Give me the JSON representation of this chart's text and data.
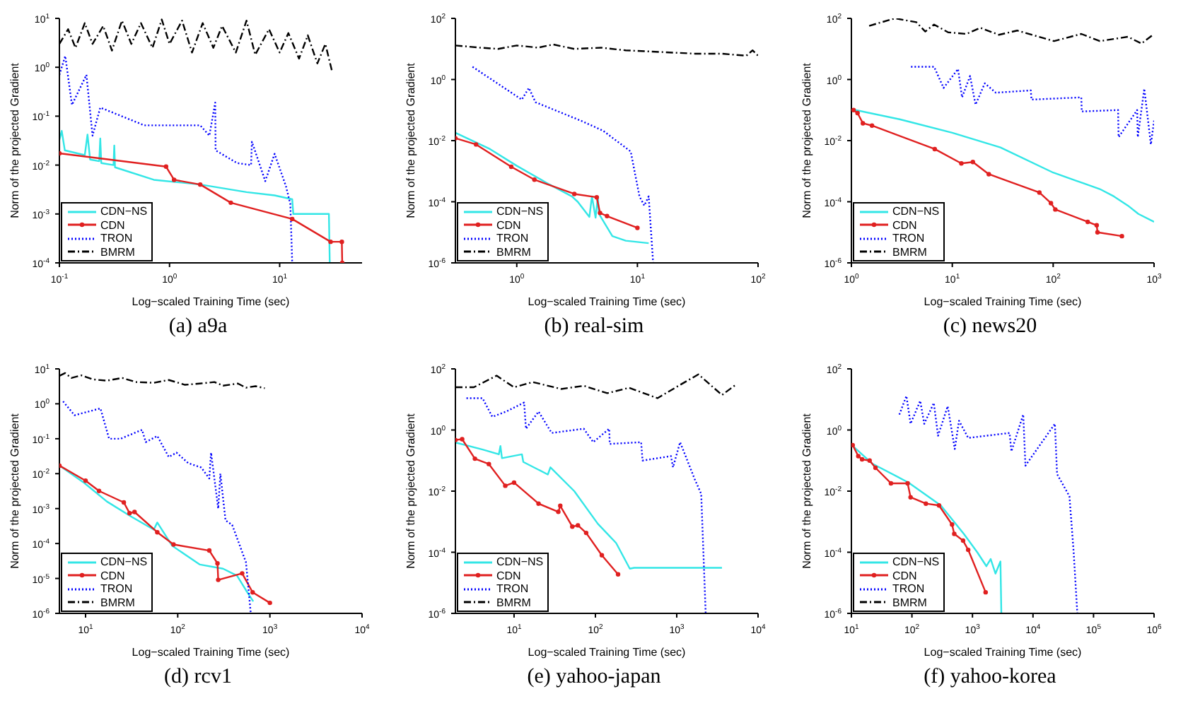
{
  "chart_data": [
    {
      "type": "line",
      "title": "(a) a9a",
      "xlabel": "Log−scaled Training Time (sec)",
      "ylabel": "Norm of the projected Gradient",
      "log": "xy",
      "legend": "bottom left",
      "xlim": [
        0.1,
        56
      ],
      "ylim": [
        0.0001,
        10
      ],
      "xticks": [
        {
          "value": 0.1,
          "label": "10$^{-1}$"
        },
        {
          "value": 1,
          "label": "10$^{0}$"
        },
        {
          "value": 10,
          "label": "10$^{1}$"
        }
      ],
      "yticks": [
        {
          "value": 0.0001,
          "label": "10$^{-4}$"
        },
        {
          "value": 0.001,
          "label": "10$^{-3}$"
        },
        {
          "value": 0.01,
          "label": "10$^{-2}$"
        },
        {
          "value": 0.1,
          "label": "10$^{-1}$"
        },
        {
          "value": 1,
          "label": "10$^{0}$"
        },
        {
          "value": 10,
          "label": "10$^{1}$"
        }
      ],
      "series": [
        {
          "name": "CDN−NS",
          "color": "#33e6e6",
          "line_style": "solid",
          "x": [
            0.1,
            0.105,
            0.112,
            0.17,
            0.18,
            0.19,
            0.23,
            0.235,
            0.24,
            0.31,
            0.315,
            0.32,
            0.72,
            1.9,
            5,
            9,
            13,
            13.3,
            28,
            28.5
          ],
          "values": [
            0.033,
            0.05,
            0.02,
            0.016,
            0.042,
            0.013,
            0.012,
            0.035,
            0.011,
            0.01,
            0.025,
            0.009,
            0.005,
            0.004,
            0.0028,
            0.0024,
            0.002,
            0.001,
            0.001,
            0.0001
          ]
        },
        {
          "name": "CDN",
          "color": "#e02020",
          "line_style": "solid",
          "marker": "circle",
          "x": [
            0.1,
            0.93,
            1.1,
            1.9,
            3.6,
            13,
            29,
            36.7,
            37
          ],
          "values": [
            0.0174,
            0.0093,
            0.005,
            0.004,
            0.0017,
            0.00079,
            0.00027,
            0.00027,
            0.0001
          ]
        },
        {
          "name": "TRON",
          "color": "#0000ff",
          "line_style": "dotted",
          "x": [
            0.1,
            0.113,
            0.13,
            0.176,
            0.2,
            0.235,
            0.59,
            1.9,
            2.3,
            2.6,
            2.62,
            4.1,
            5.5,
            5.6,
            7.4,
            9,
            11.4,
            12.5,
            13
          ],
          "values": [
            0.7,
            1.7,
            0.17,
            0.7,
            0.04,
            0.15,
            0.065,
            0.065,
            0.04,
            0.19,
            0.02,
            0.011,
            0.01,
            0.03,
            0.0047,
            0.017,
            0.0037,
            0.0016,
            0.0001
          ]
        },
        {
          "name": "BMRM",
          "color": "#000000",
          "line_style": "dashed",
          "x": [
            0.1,
            0.12,
            0.14,
            0.17,
            0.2,
            0.25,
            0.3,
            0.37,
            0.45,
            0.55,
            0.7,
            0.85,
            1,
            1.3,
            1.6,
            2,
            2.5,
            3,
            4,
            5,
            6,
            8,
            10,
            12,
            15,
            18,
            22,
            26,
            30
          ],
          "values": [
            3,
            6,
            2.5,
            8,
            3,
            7,
            2.2,
            9,
            3,
            8,
            2.5,
            9.5,
            3,
            9,
            2,
            8,
            2.5,
            7,
            2,
            9,
            1.8,
            6,
            2,
            5,
            1.5,
            4.5,
            1.2,
            3,
            0.8
          ]
        }
      ]
    },
    {
      "type": "line",
      "title": "(b) real-sim",
      "xlabel": "Log−scaled Training Time (sec)",
      "ylabel": "Norm of the projected Gradient",
      "log": "xy",
      "legend": "bottom left",
      "xlim": [
        0.31,
        100
      ],
      "ylim": [
        1e-06,
        100
      ],
      "xticks": [
        {
          "value": 1,
          "label": "10$^{0}$"
        },
        {
          "value": 10,
          "label": "10$^{1}$"
        },
        {
          "value": 100,
          "label": "10$^{2}$"
        }
      ],
      "yticks": [
        {
          "value": 1e-06,
          "label": "10$^{-6}$"
        },
        {
          "value": 0.0001,
          "label": "10$^{-4}$"
        },
        {
          "value": 0.01,
          "label": "10$^{-2}$"
        },
        {
          "value": 1,
          "label": "10$^{0}$"
        },
        {
          "value": 100,
          "label": "10$^{2}$"
        }
      ],
      "series": [
        {
          "name": "CDN−NS",
          "color": "#33e6e6",
          "line_style": "solid",
          "x": [
            0.31,
            0.6,
            1,
            1.86,
            2.86,
            3.2,
            4,
            4.2,
            4.5,
            4.7,
            4.8,
            6.2,
            8,
            12.4
          ],
          "values": [
            0.018,
            0.0053,
            0.0015,
            0.00037,
            0.00015,
            0.0001,
            3.2e-05,
            0.00015,
            3e-05,
            0.00015,
            4e-05,
            7.5e-06,
            5.3e-06,
            4.4e-06
          ]
        },
        {
          "name": "CDN",
          "color": "#e02020",
          "line_style": "solid",
          "marker": "circle",
          "x": [
            0.31,
            0.46,
            0.9,
            1.4,
            3,
            4.6,
            4.9,
            5.6,
            10
          ],
          "values": [
            0.012,
            0.0075,
            0.0014,
            0.00053,
            0.00018,
            0.00014,
            4.3e-05,
            3.4e-05,
            1.4e-05
          ]
        },
        {
          "name": "TRON",
          "color": "#0000ff",
          "line_style": "dotted",
          "x": [
            0.43,
            1.1,
            1.26,
            1.43,
            3.4,
            5.2,
            8.8,
            10.4,
            11.4,
            12.4,
            13.5
          ],
          "values": [
            2.6,
            0.22,
            0.53,
            0.18,
            0.045,
            0.021,
            0.0044,
            0.00015,
            7.5e-05,
            0.00015,
            1e-06
          ]
        },
        {
          "name": "BMRM",
          "color": "#000000",
          "line_style": "dashed",
          "x": [
            0.31,
            0.5,
            0.7,
            1,
            1.5,
            2,
            3,
            5,
            8,
            15,
            30,
            50,
            80,
            90,
            100
          ],
          "values": [
            13,
            11,
            10,
            13,
            11,
            14,
            10,
            11,
            9,
            8,
            7,
            7,
            6,
            9,
            6
          ]
        }
      ]
    },
    {
      "type": "line",
      "title": "(c) news20",
      "xlabel": "Log−scaled Training Time (sec)",
      "ylabel": "Norm of the projected Gradient",
      "log": "xy",
      "legend": "bottom left",
      "xlim": [
        1,
        1000
      ],
      "ylim": [
        1e-06,
        100
      ],
      "xticks": [
        {
          "value": 1,
          "label": "10$^{0}$"
        },
        {
          "value": 10,
          "label": "10$^{1}$"
        },
        {
          "value": 100,
          "label": "10$^{2}$"
        },
        {
          "value": 1000,
          "label": "10$^{3}$"
        }
      ],
      "yticks": [
        {
          "value": 1e-06,
          "label": "10$^{-6}$"
        },
        {
          "value": 0.0001,
          "label": "10$^{-4}$"
        },
        {
          "value": 0.01,
          "label": "10$^{-2}$"
        },
        {
          "value": 1,
          "label": "10$^{0}$"
        },
        {
          "value": 100,
          "label": "10$^{2}$"
        }
      ],
      "series": [
        {
          "name": "CDN−NS",
          "color": "#33e6e6",
          "line_style": "solid",
          "x": [
            1,
            3,
            10,
            30,
            100,
            200,
            290,
            400,
            550,
            700,
            1000
          ],
          "values": [
            0.107,
            0.05,
            0.018,
            0.006,
            0.0009,
            0.0004,
            0.00026,
            0.00015,
            7.5e-05,
            4e-05,
            2.2e-05
          ]
        },
        {
          "name": "CDN",
          "color": "#e02020",
          "line_style": "solid",
          "marker": "circle",
          "x": [
            1.05,
            1.15,
            1.3,
            1.6,
            6.7,
            12.3,
            16,
            23,
            73,
            95,
            105,
            220,
            270,
            275,
            480
          ],
          "values": [
            0.1,
            0.08,
            0.037,
            0.031,
            0.0053,
            0.0018,
            0.002,
            0.0008,
            0.0002,
            9e-05,
            5.6e-05,
            2.2e-05,
            1.7e-05,
            1e-05,
            7.5e-06
          ]
        },
        {
          "name": "TRON",
          "color": "#0000ff",
          "line_style": "dotted",
          "x": [
            3.9,
            6.6,
            8.2,
            11.4,
            12.5,
            15,
            17,
            21,
            27,
            60,
            61,
            190,
            192,
            440,
            445,
            680,
            690,
            800,
            930,
            1000
          ],
          "values": [
            2.6,
            2.6,
            0.53,
            2.2,
            0.26,
            1.3,
            0.15,
            0.75,
            0.37,
            0.44,
            0.22,
            0.26,
            0.09,
            0.1,
            0.013,
            0.1,
            0.013,
            0.5,
            0.0075,
            0.045
          ]
        },
        {
          "name": "BMRM",
          "color": "#000000",
          "line_style": "dashed",
          "x": [
            1.5,
            2.7,
            4.4,
            5.4,
            6.6,
            9.1,
            13.8,
            19,
            29,
            44,
            102,
            190,
            290,
            550,
            750,
            1000
          ],
          "values": [
            57,
            100,
            75,
            37,
            63,
            35,
            31,
            49,
            29,
            40,
            18,
            31,
            18,
            25,
            15,
            31
          ]
        }
      ]
    },
    {
      "type": "line",
      "title": "(d) rcv1",
      "xlabel": "Log−scaled Training Time (sec)",
      "ylabel": "Norm of the projected Gradient",
      "log": "xy",
      "legend": "bottom left",
      "xlim": [
        5.2,
        10000
      ],
      "ylim": [
        1e-06,
        10
      ],
      "xticks": [
        {
          "value": 10,
          "label": "10$^{1}$"
        },
        {
          "value": 100,
          "label": "10$^{2}$"
        },
        {
          "value": 1000,
          "label": "10$^{3}$"
        },
        {
          "value": 10000,
          "label": "10$^{4}$"
        }
      ],
      "yticks": [
        {
          "value": 1e-06,
          "label": "10$^{-6}$"
        },
        {
          "value": 1e-05,
          "label": "10$^{-5}$"
        },
        {
          "value": 0.0001,
          "label": "10$^{-4}$"
        },
        {
          "value": 0.001,
          "label": "10$^{-3}$"
        },
        {
          "value": 0.01,
          "label": "10$^{-2}$"
        },
        {
          "value": 0.1,
          "label": "10$^{-1}$"
        },
        {
          "value": 1,
          "label": "10$^{0}$"
        },
        {
          "value": 10,
          "label": "10$^{1}$"
        }
      ],
      "series": [
        {
          "name": "CDN−NS",
          "color": "#33e6e6",
          "line_style": "solid",
          "x": [
            5.2,
            9.7,
            17,
            31,
            55,
            60,
            87,
            174,
            310,
            440,
            550,
            660
          ],
          "values": [
            0.017,
            0.0054,
            0.0016,
            0.0006,
            0.00025,
            0.0004,
            8.6e-05,
            2.5e-05,
            1.9e-05,
            1.2e-05,
            4.6e-06,
            2.2e-06
          ]
        },
        {
          "name": "CDN",
          "color": "#e02020",
          "line_style": "solid",
          "marker": "circle",
          "x": [
            5.2,
            10,
            14,
            26,
            30,
            34,
            60,
            90,
            220,
            270,
            275,
            500,
            650,
            1000
          ],
          "values": [
            0.017,
            0.0063,
            0.0032,
            0.0015,
            0.00074,
            0.0008,
            0.00021,
            9.4e-05,
            6.3e-05,
            2.7e-05,
            9.1e-06,
            1.4e-05,
            4e-06,
            2e-06
          ]
        },
        {
          "name": "TRON",
          "color": "#0000ff",
          "line_style": "dotted",
          "x": [
            5.7,
            7.6,
            14.5,
            18,
            24,
            41,
            45,
            60,
            80,
            97,
            130,
            180,
            220,
            230,
            275,
            290,
            330,
            390,
            550,
            620
          ],
          "values": [
            1.17,
            0.47,
            0.74,
            0.1,
            0.1,
            0.18,
            0.08,
            0.12,
            0.03,
            0.04,
            0.02,
            0.015,
            0.0073,
            0.04,
            0.001,
            0.01,
            0.00046,
            0.00034,
            2.9e-05,
            1e-06
          ]
        },
        {
          "name": "BMRM",
          "color": "#000000",
          "line_style": "dashed",
          "x": [
            5.2,
            6,
            7,
            9,
            12,
            17,
            25,
            35,
            55,
            80,
            120,
            174,
            250,
            310,
            450,
            550,
            700,
            880
          ],
          "values": [
            6.3,
            7.6,
            5.5,
            6.5,
            5,
            4.6,
            5.5,
            4.2,
            4,
            4.8,
            3.5,
            3.8,
            4.2,
            3.3,
            3.8,
            2.9,
            3.2,
            2.8
          ]
        }
      ]
    },
    {
      "type": "line",
      "title": "(e) yahoo-japan",
      "xlabel": "Log−scaled Training Time (sec)",
      "ylabel": "Norm of the projected Gradient",
      "log": "xy",
      "legend": "bottom left",
      "xlim": [
        1.9,
        10000
      ],
      "ylim": [
        1e-06,
        100
      ],
      "xticks": [
        {
          "value": 10,
          "label": "10$^{1}$"
        },
        {
          "value": 100,
          "label": "10$^{2}$"
        },
        {
          "value": 1000,
          "label": "10$^{3}$"
        },
        {
          "value": 10000,
          "label": "10$^{4}$"
        }
      ],
      "yticks": [
        {
          "value": 1e-06,
          "label": "10$^{-6}$"
        },
        {
          "value": 0.0001,
          "label": "10$^{-4}$"
        },
        {
          "value": 0.01,
          "label": "10$^{-2}$"
        },
        {
          "value": 1,
          "label": "10$^{0}$"
        },
        {
          "value": 100,
          "label": "10$^{2}$"
        }
      ],
      "series": [
        {
          "name": "CDN−NS",
          "color": "#33e6e6",
          "line_style": "solid",
          "x": [
            1.9,
            4.1,
            6.5,
            6.8,
            7.1,
            12.5,
            13,
            26,
            28,
            55,
            107,
            180,
            265,
            300,
            3600
          ],
          "values": [
            0.39,
            0.23,
            0.16,
            0.3,
            0.12,
            0.16,
            0.09,
            0.035,
            0.06,
            0.01,
            0.00086,
            0.0002,
            2.9e-05,
            3.1e-05,
            3.1e-05
          ]
        },
        {
          "name": "CDN",
          "color": "#e02020",
          "line_style": "solid",
          "marker": "circle",
          "x": [
            1.9,
            2.3,
            3.3,
            4.9,
            7.8,
            10,
            20,
            35,
            37,
            52,
            61,
            77,
            120,
            190
          ],
          "values": [
            0.47,
            0.5,
            0.115,
            0.077,
            0.015,
            0.019,
            0.0039,
            0.0021,
            0.0033,
            0.00069,
            0.00076,
            0.00043,
            8e-05,
            1.9e-05
          ]
        },
        {
          "name": "TRON",
          "color": "#0000ff",
          "line_style": "dotted",
          "x": [
            2.6,
            4.1,
            5.4,
            8,
            13.3,
            14,
            20,
            29,
            72,
            94,
            148,
            150,
            365,
            380,
            850,
            900,
            1100,
            1660,
            2000,
            2270
          ],
          "values": [
            11,
            11,
            2.7,
            4,
            7.9,
            1.1,
            4,
            0.8,
            1.1,
            0.4,
            1.1,
            0.35,
            0.4,
            0.1,
            0.14,
            0.06,
            0.4,
            0.025,
            0.0081,
            1e-06
          ]
        },
        {
          "name": "BMRM",
          "color": "#000000",
          "line_style": "dashed",
          "x": [
            1.9,
            3.2,
            6.1,
            10,
            17,
            38,
            72,
            140,
            260,
            580,
            1100,
            1850,
            3600,
            5300
          ],
          "values": [
            25,
            25,
            60,
            25,
            37,
            22,
            28,
            16,
            24,
            11,
            30,
            66,
            14,
            30
          ]
        }
      ]
    },
    {
      "type": "line",
      "title": "(f) yahoo-korea",
      "xlabel": "Log−scaled Training Time (sec)",
      "ylabel": "Norm of the projected Gradient",
      "log": "xy",
      "legend": "bottom left",
      "xlim": [
        10,
        1000000
      ],
      "ylim": [
        1e-06,
        100
      ],
      "xticks": [
        {
          "value": 10,
          "label": "10$^{1}$"
        },
        {
          "value": 100,
          "label": "10$^{2}$"
        },
        {
          "value": 1000,
          "label": "10$^{3}$"
        },
        {
          "value": 10000,
          "label": "10$^{4}$"
        },
        {
          "value": 100000,
          "label": "10$^{5}$"
        },
        {
          "value": 1000000,
          "label": "10$^{6}$"
        }
      ],
      "yticks": [
        {
          "value": 1e-06,
          "label": "10$^{-6}$"
        },
        {
          "value": 0.0001,
          "label": "10$^{-4}$"
        },
        {
          "value": 0.01,
          "label": "10$^{-2}$"
        },
        {
          "value": 1,
          "label": "10$^{0}$"
        },
        {
          "value": 100,
          "label": "10$^{2}$"
        }
      ],
      "series": [
        {
          "name": "CDN−NS",
          "color": "#33e6e6",
          "line_style": "solid",
          "x": [
            10,
            22,
            88,
            300,
            720,
            1200,
            1700,
            2000,
            2400,
            2900,
            3000
          ],
          "values": [
            0.33,
            0.08,
            0.019,
            0.0034,
            0.0004,
            0.0001,
            3.5e-05,
            6e-05,
            2e-05,
            5e-05,
            1e-06
          ]
        },
        {
          "name": "CDN",
          "color": "#e02020",
          "line_style": "solid",
          "marker": "circle",
          "x": [
            10.5,
            13,
            15,
            20,
            25,
            45,
            85,
            95,
            170,
            280,
            460,
            500,
            700,
            850,
            1650
          ],
          "values": [
            0.32,
            0.14,
            0.11,
            0.1,
            0.058,
            0.018,
            0.018,
            0.0063,
            0.0039,
            0.0034,
            0.00081,
            0.0004,
            0.00024,
            0.00012,
            4.9e-06
          ]
        },
        {
          "name": "TRON",
          "color": "#0000ff",
          "line_style": "dotted",
          "x": [
            62,
            81,
            95,
            137,
            160,
            230,
            270,
            390,
            510,
            600,
            850,
            4100,
            4400,
            6900,
            7500,
            23000,
            25000,
            40000,
            47000,
            54000
          ],
          "values": [
            3.2,
            13,
            1.6,
            9,
            1.6,
            7.7,
            0.65,
            6,
            0.24,
            2,
            0.55,
            0.8,
            0.2,
            3.2,
            0.068,
            1.6,
            0.036,
            0.0068,
            0.0001,
            1e-06
          ]
        },
        {
          "name": "BMRM",
          "color": "#000000",
          "line_style": "dashed"
        }
      ]
    }
  ]
}
